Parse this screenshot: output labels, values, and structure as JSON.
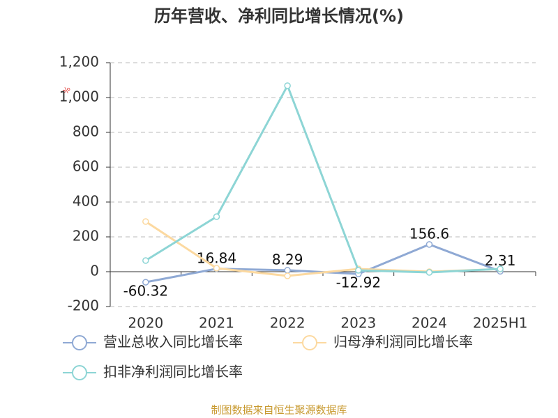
{
  "chart_data": {
    "type": "line",
    "title": "历年营收、净利同比增长情况(%)",
    "y_label": "%",
    "categories": [
      "2020",
      "2021",
      "2022",
      "2023",
      "2024",
      "2025H1"
    ],
    "series": [
      {
        "name": "营业总收入同比增长率",
        "color": "#8fa9d4",
        "values": [
          -60.32,
          16.84,
          8.29,
          -12.92,
          156.6,
          2.31
        ],
        "show_labels": true
      },
      {
        "name": "归母净利润同比增长率",
        "color": "#fcd9a0",
        "values": [
          288,
          20,
          -24,
          16,
          0,
          15
        ]
      },
      {
        "name": "扣非净利润同比增长率",
        "color": "#8dd5d5",
        "values": [
          64,
          316,
          1068,
          8,
          -4,
          16
        ]
      }
    ],
    "ylim": [
      -200,
      1200
    ],
    "yticks": [
      -200,
      0,
      200,
      400,
      600,
      800,
      {
        "value": 1000,
        "label": "1,000"
      },
      {
        "value": 1200,
        "label": "1,200"
      }
    ],
    "grid": true,
    "source": "制图数据来自恒生聚源数据库"
  }
}
